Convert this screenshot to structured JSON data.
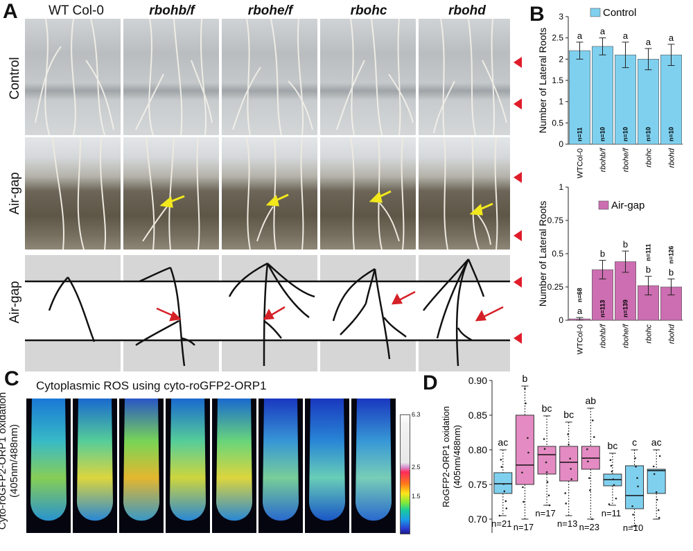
{
  "panel_labels": {
    "A": "A",
    "B": "B",
    "C": "C",
    "D": "D"
  },
  "panel_a": {
    "columns": [
      "WT Col-0",
      "rbohb/f",
      "rbohe/f",
      "rbohc",
      "rbohd"
    ],
    "rows": [
      "Control",
      "Air-gap",
      "Air-gap"
    ]
  },
  "panel_c": {
    "title": "Cytoplasmic ROS using cyto-roGFP2-ORP1",
    "ylabel_line1": "Cyto-roGFP2-ORP1 oxidation",
    "ylabel_line2": "(405nm/488nm)",
    "colorbar_ticks": [
      "6.3",
      "2.5",
      "1.5"
    ]
  },
  "chart_data": [
    {
      "type": "bar",
      "title": "",
      "legend": "Control",
      "legend_position": "top-right",
      "color": "#7fd0ef",
      "ylabel": "Number of Lateral Roots",
      "ylim": [
        0,
        3
      ],
      "yticks": [
        "0",
        "0.5",
        "1",
        "1.5",
        "2",
        "2.5",
        "3"
      ],
      "categories": [
        "WTCol-0",
        "rbohb/f",
        "rbohe/f",
        "rbohc",
        "rbohd"
      ],
      "values": [
        2.2,
        2.3,
        2.1,
        2.0,
        2.1
      ],
      "errors": [
        0.2,
        0.2,
        0.3,
        0.25,
        0.25
      ],
      "letters": [
        "a",
        "a",
        "a",
        "a",
        "a"
      ],
      "n_labels": [
        "n=11",
        "n=10",
        "n=10",
        "n=10",
        "n=10"
      ]
    },
    {
      "type": "bar",
      "title": "",
      "legend": "Air-gap",
      "legend_position": "top-right",
      "color": "#cc6eb1",
      "ylabel": "Number of Lateral Roots",
      "ylim": [
        0,
        1
      ],
      "yticks": [
        "0",
        "0.25",
        "0.5",
        "0.75",
        "1"
      ],
      "categories": [
        "WTCol-0",
        "rbohb/f",
        "rbohe/f",
        "rbohc",
        "rbohd"
      ],
      "values": [
        0.01,
        0.38,
        0.44,
        0.26,
        0.25
      ],
      "errors": [
        0.01,
        0.07,
        0.08,
        0.07,
        0.06
      ],
      "letters": [
        "a",
        "b",
        "b",
        "b",
        "b"
      ],
      "n_labels": [
        "n=68",
        "n=113",
        "n=139",
        "n=111",
        "n=126"
      ]
    },
    {
      "type": "box",
      "title": "",
      "ylabel_line1": "RoGFP2-ORP1 oxidation",
      "ylabel_line2": "(405nm/488nm)",
      "ylim": [
        0.68,
        0.9
      ],
      "yticks": [
        "0.70",
        "0.75",
        "0.80",
        "0.85",
        "0.90"
      ],
      "boxes": [
        {
          "q1": 0.737,
          "median": 0.751,
          "q3": 0.767,
          "min": 0.705,
          "max": 0.8,
          "color": "#7fd0ef",
          "letter": "ac",
          "n": "n=21"
        },
        {
          "q1": 0.75,
          "median": 0.778,
          "q3": 0.85,
          "min": 0.7,
          "max": 0.892,
          "color": "#e58bc3",
          "letter": "b",
          "n": "n=17"
        },
        {
          "q1": 0.765,
          "median": 0.793,
          "q3": 0.805,
          "min": 0.72,
          "max": 0.849,
          "color": "#e58bc3",
          "letter": "bc",
          "n": "n=17"
        },
        {
          "q1": 0.755,
          "median": 0.782,
          "q3": 0.805,
          "min": 0.705,
          "max": 0.84,
          "color": "#e58bc3",
          "letter": "bc",
          "n": "n=13"
        },
        {
          "q1": 0.772,
          "median": 0.788,
          "q3": 0.805,
          "min": 0.7,
          "max": 0.86,
          "color": "#e58bc3",
          "letter": "ab",
          "n": "n=23"
        },
        {
          "q1": 0.748,
          "median": 0.757,
          "q3": 0.765,
          "min": 0.72,
          "max": 0.795,
          "color": "#7fd0ef",
          "letter": "bc",
          "n": "n=11"
        },
        {
          "q1": 0.715,
          "median": 0.734,
          "q3": 0.777,
          "min": 0.69,
          "max": 0.8,
          "color": "#7fd0ef",
          "letter": "c",
          "n": "n=10"
        },
        {
          "q1": 0.737,
          "median": 0.77,
          "q3": 0.772,
          "min": 0.7,
          "max": 0.8,
          "color": "#7fd0ef",
          "letter": "ac",
          "n": ""
        }
      ]
    }
  ]
}
